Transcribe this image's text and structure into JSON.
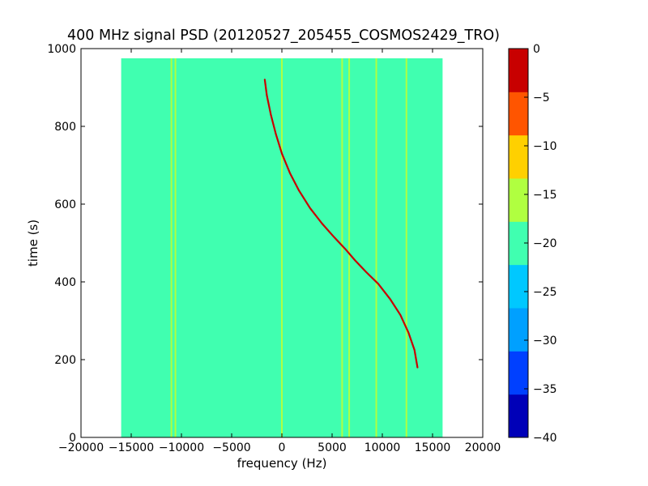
{
  "chart_data": {
    "type": "heatmap",
    "title": "400 MHz signal PSD (20120527_205455_COSMOS2429_TRO)",
    "xlabel": "frequency (Hz)",
    "ylabel": "time (s)",
    "xlim": [
      -20000,
      20000
    ],
    "ylim": [
      0,
      1000
    ],
    "x_ticks": [
      -20000,
      -15000,
      -10000,
      -5000,
      0,
      5000,
      10000,
      15000,
      20000
    ],
    "y_ticks": [
      0,
      200,
      400,
      600,
      800,
      1000
    ],
    "data_extent": {
      "x": [
        -16000,
        16000
      ],
      "y": [
        0,
        975
      ]
    },
    "background_level": -20,
    "colorbar": {
      "levels": [
        -40,
        -35,
        -30,
        -25,
        -20,
        -15,
        -10,
        -5,
        0
      ],
      "colors": [
        "#0000b8",
        "#0040ff",
        "#00a0ff",
        "#00c8ff",
        "#40ffb0",
        "#b0ff40",
        "#ffd000",
        "#ff5500",
        "#c80000"
      ]
    },
    "colorbar_ticks": [
      "0",
      "−5",
      "−10",
      "−15",
      "−20",
      "−25",
      "−30",
      "−35",
      "−40"
    ],
    "x_tick_labels": [
      "−20000",
      "−15000",
      "−10000",
      "−5000",
      "0",
      "5000",
      "10000",
      "15000",
      "20000"
    ],
    "y_tick_labels": [
      "0",
      "200",
      "400",
      "600",
      "800",
      "1000"
    ],
    "lines": [
      {
        "x": -10600,
        "y": [
          0,
          975
        ],
        "level": -15
      },
      {
        "x": -11000,
        "y": [
          0,
          975
        ],
        "level": -15
      },
      {
        "x": 0,
        "y": [
          0,
          975
        ],
        "level": -15
      },
      {
        "x": 6000,
        "y": [
          0,
          975
        ],
        "level": -15
      },
      {
        "x": 6700,
        "y": [
          0,
          975
        ],
        "level": -15
      },
      {
        "x": 9400,
        "y": [
          0,
          975
        ],
        "level": -15
      },
      {
        "x": 12400,
        "y": [
          0,
          975
        ],
        "level": -15
      }
    ],
    "series": [
      {
        "x": [
          -1700,
          -1500,
          -1100,
          -600,
          0,
          800,
          1700,
          2800,
          4000,
          5200,
          6300,
          7300,
          8400,
          9600,
          10800,
          11800,
          12600,
          13200,
          13500
        ],
        "y": [
          920,
          880,
          830,
          780,
          730,
          680,
          635,
          590,
          550,
          515,
          485,
          455,
          425,
          395,
          355,
          315,
          270,
          225,
          180
        ],
        "level": 0
      }
    ]
  }
}
